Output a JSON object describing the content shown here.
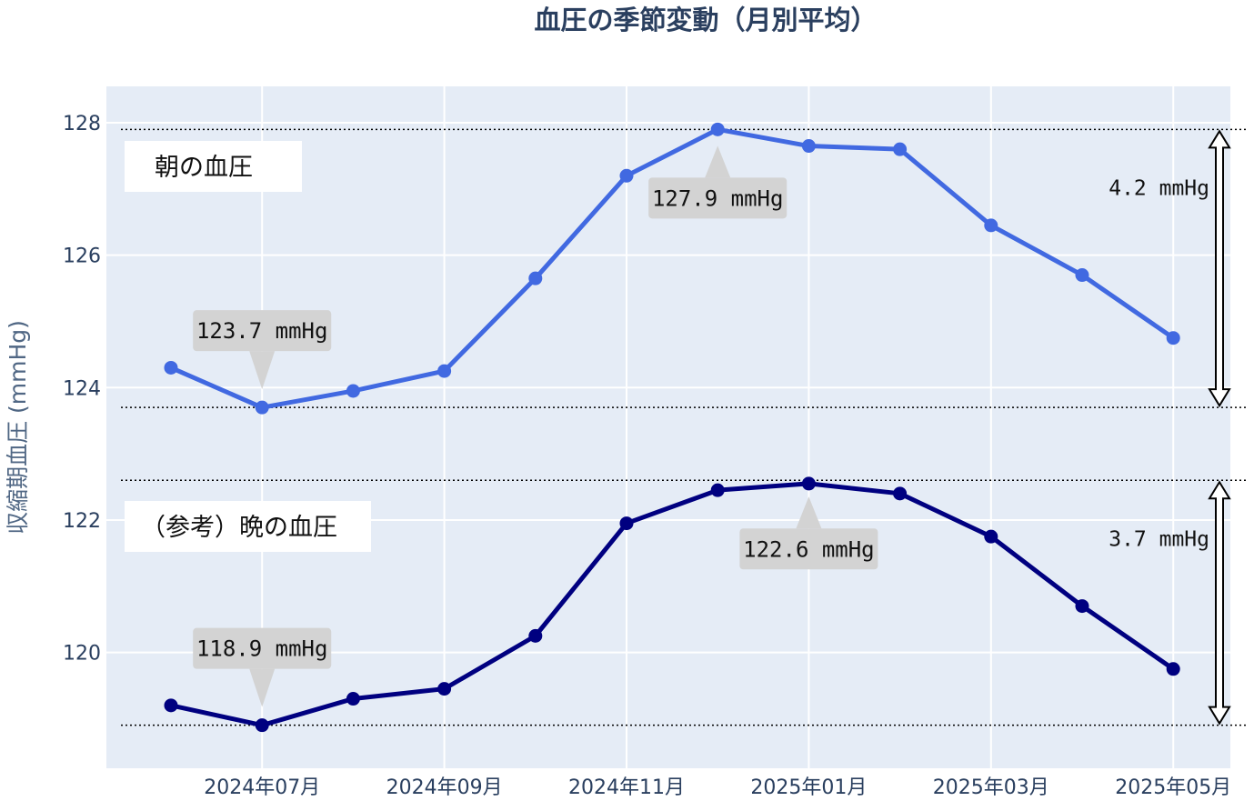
{
  "chart_data": {
    "type": "line",
    "title": "血圧の季節変動（月別平均）",
    "ylabel": "収縮期血圧 (mmHg)",
    "xlabel": "",
    "x": [
      "2024-06",
      "2024-07",
      "2024-08",
      "2024-09",
      "2024-10",
      "2024-11",
      "2024-12",
      "2025-01",
      "2025-02",
      "2025-03",
      "2025-04",
      "2025-05"
    ],
    "x_tick_labels": [
      "2024年07月",
      "2024年09月",
      "2024年11月",
      "2025年01月",
      "2025年03月",
      "2025年05月"
    ],
    "x_tick_dates": [
      "2024-07",
      "2024-09",
      "2024-11",
      "2025-01",
      "2025-03",
      "2025-05"
    ],
    "ylim": [
      118.25,
      128.55
    ],
    "y_ticks": [
      120,
      122,
      124,
      126,
      128
    ],
    "grid": true,
    "series": [
      {
        "name": "朝の血圧",
        "color": "#4169e1",
        "values": [
          124.3,
          123.7,
          123.95,
          124.25,
          125.65,
          127.2,
          127.9,
          127.65,
          127.6,
          126.45,
          125.7,
          124.75
        ],
        "min_label": "123.7 mmHg",
        "max_label": "127.9 mmHg",
        "min_date": "2024-07",
        "max_date": "2024-12",
        "range_label": "4.2 mmHg",
        "range_min": 123.7,
        "range_max": 127.9
      },
      {
        "name": "（参考）晩の血圧",
        "color": "#000080",
        "values": [
          119.2,
          118.9,
          119.3,
          119.45,
          120.25,
          121.95,
          122.45,
          122.55,
          122.4,
          121.75,
          120.7,
          119.75
        ],
        "min_label": "118.9 mmHg",
        "max_label": "122.6 mmHg",
        "min_date": "2024-07",
        "max_date": "2025-01",
        "range_label": "3.7 mmHg",
        "range_min": 118.9,
        "range_max": 122.6
      }
    ]
  },
  "colors": {
    "plot_bg": "#e5ecf6",
    "grid": "#ffffff",
    "annotation_bg": "#d3d3d3"
  }
}
